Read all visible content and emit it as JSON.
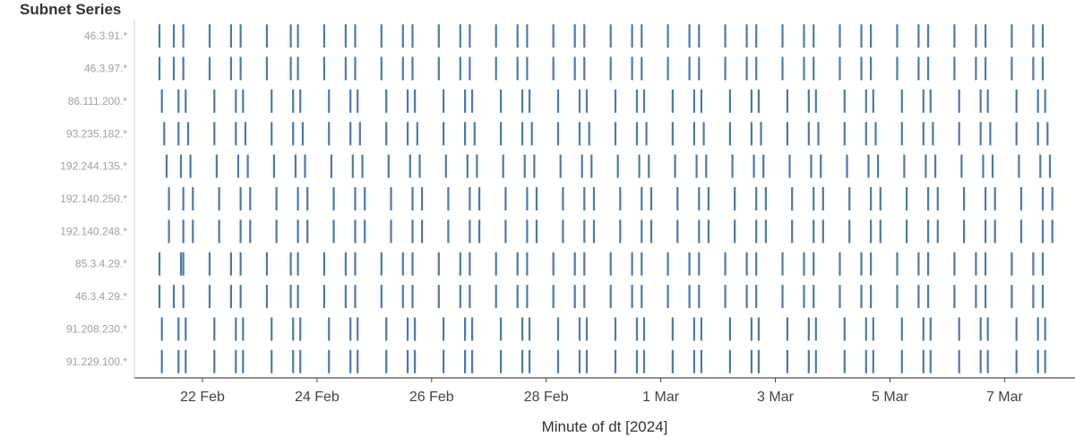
{
  "chart_data": {
    "type": "strip",
    "row_header": "Subnet Series",
    "xlabel": "Minute of dt [2024]",
    "x_ticks": [
      "22 Feb",
      "24 Feb",
      "26 Feb",
      "28 Feb",
      "1 Mar",
      "3 Mar",
      "5 Mar",
      "7 Mar"
    ],
    "xlim": [
      "2024-02-21T00:00",
      "2024-03-07T22:00"
    ],
    "legend": "none",
    "grid": false,
    "mark_color": "#4e79a7",
    "rows": [
      {
        "name": "46.3.91.*",
        "events": [
          "2024-02-21T06:00",
          "2024-02-21T12:00",
          "2024-02-21T16:00",
          "2024-02-22T03:00",
          "2024-02-22T12:00",
          "2024-02-22T16:00",
          "2024-02-23T03:00",
          "2024-02-23T13:00",
          "2024-02-23T16:00",
          "2024-02-24T03:00",
          "2024-02-24T12:00",
          "2024-02-24T16:00",
          "2024-02-25T03:00",
          "2024-02-25T12:00",
          "2024-02-25T16:00",
          "2024-02-26T03:00",
          "2024-02-26T12:00",
          "2024-02-26T16:00",
          "2024-02-27T03:00",
          "2024-02-27T12:00",
          "2024-02-27T16:00",
          "2024-02-28T03:00",
          "2024-02-28T12:00",
          "2024-02-28T16:00",
          "2024-02-29T03:00",
          "2024-02-29T12:00",
          "2024-02-29T16:00",
          "2024-03-01T03:00",
          "2024-03-01T12:00",
          "2024-03-01T16:00",
          "2024-03-02T03:00",
          "2024-03-02T12:00",
          "2024-03-02T16:00",
          "2024-03-03T03:00",
          "2024-03-03T12:00",
          "2024-03-03T16:00",
          "2024-03-04T03:00",
          "2024-03-04T12:00",
          "2024-03-04T16:00",
          "2024-03-05T03:00",
          "2024-03-05T12:00",
          "2024-03-05T16:00",
          "2024-03-06T03:00",
          "2024-03-06T12:00",
          "2024-03-06T16:00",
          "2024-03-07T03:00",
          "2024-03-07T12:00",
          "2024-03-07T16:00"
        ]
      },
      {
        "name": "46.3.97.*",
        "events": [
          "2024-02-21T06:00",
          "2024-02-21T12:00",
          "2024-02-21T16:00",
          "2024-02-22T03:00",
          "2024-02-22T12:00",
          "2024-02-22T16:00",
          "2024-02-23T03:00",
          "2024-02-23T13:00",
          "2024-02-23T16:00",
          "2024-02-24T03:00",
          "2024-02-24T12:00",
          "2024-02-24T16:00",
          "2024-02-25T03:00",
          "2024-02-25T12:00",
          "2024-02-25T16:00",
          "2024-02-26T03:00",
          "2024-02-26T12:00",
          "2024-02-26T16:00",
          "2024-02-27T03:00",
          "2024-02-27T12:00",
          "2024-02-27T16:00",
          "2024-02-28T03:00",
          "2024-02-28T12:00",
          "2024-02-28T16:00",
          "2024-02-29T03:00",
          "2024-02-29T12:00",
          "2024-02-29T16:00",
          "2024-03-01T03:00",
          "2024-03-01T12:00",
          "2024-03-01T16:00",
          "2024-03-02T03:00",
          "2024-03-02T12:00",
          "2024-03-02T16:00",
          "2024-03-03T03:00",
          "2024-03-03T12:00",
          "2024-03-03T16:00",
          "2024-03-04T03:00",
          "2024-03-04T12:00",
          "2024-03-04T16:00",
          "2024-03-05T03:00",
          "2024-03-05T12:00",
          "2024-03-05T16:00",
          "2024-03-06T03:00",
          "2024-03-06T12:00",
          "2024-03-06T16:00",
          "2024-03-07T03:00",
          "2024-03-07T12:00",
          "2024-03-07T16:00"
        ]
      },
      {
        "name": "86.111.200.*",
        "events": [
          "2024-02-21T07:00",
          "2024-02-21T14:00",
          "2024-02-21T17:00",
          "2024-02-22T05:00",
          "2024-02-22T14:00",
          "2024-02-22T17:00",
          "2024-02-23T05:00",
          "2024-02-23T14:00",
          "2024-02-23T17:00",
          "2024-02-24T05:00",
          "2024-02-24T14:00",
          "2024-02-24T17:00",
          "2024-02-25T05:00",
          "2024-02-25T14:00",
          "2024-02-25T17:00",
          "2024-02-26T05:00",
          "2024-02-26T14:00",
          "2024-02-26T17:00",
          "2024-02-27T05:00",
          "2024-02-27T14:00",
          "2024-02-27T17:00",
          "2024-02-28T05:00",
          "2024-02-28T14:00",
          "2024-02-28T17:00",
          "2024-02-29T05:00",
          "2024-02-29T14:00",
          "2024-02-29T17:00",
          "2024-03-01T05:00",
          "2024-03-01T14:00",
          "2024-03-01T17:00",
          "2024-03-02T05:00",
          "2024-03-02T14:00",
          "2024-03-02T17:00",
          "2024-03-03T05:00",
          "2024-03-03T14:00",
          "2024-03-03T17:00",
          "2024-03-04T05:00",
          "2024-03-04T14:00",
          "2024-03-04T17:00",
          "2024-03-05T05:00",
          "2024-03-05T14:00",
          "2024-03-05T17:00",
          "2024-03-06T05:00",
          "2024-03-06T14:00",
          "2024-03-06T17:00",
          "2024-03-07T05:00",
          "2024-03-07T14:00",
          "2024-03-07T17:00"
        ]
      },
      {
        "name": "93.235.182.*",
        "events": [
          "2024-02-21T08:00",
          "2024-02-21T14:00",
          "2024-02-21T18:00",
          "2024-02-22T05:00",
          "2024-02-22T14:00",
          "2024-02-22T18:00",
          "2024-02-23T05:00",
          "2024-02-23T14:00",
          "2024-02-23T18:00",
          "2024-02-24T05:00",
          "2024-02-24T14:00",
          "2024-02-24T18:00",
          "2024-02-25T05:00",
          "2024-02-25T14:00",
          "2024-02-25T18:00",
          "2024-02-26T05:00",
          "2024-02-26T14:00",
          "2024-02-26T18:00",
          "2024-02-27T05:00",
          "2024-02-27T14:00",
          "2024-02-27T18:00",
          "2024-02-28T05:00",
          "2024-02-28T14:00",
          "2024-02-28T18:00",
          "2024-02-29T05:00",
          "2024-02-29T14:00",
          "2024-02-29T18:00",
          "2024-03-01T05:00",
          "2024-03-01T14:00",
          "2024-03-01T18:00",
          "2024-03-02T05:00",
          "2024-03-02T14:00",
          "2024-03-02T18:00",
          "2024-03-03T05:00",
          "2024-03-03T14:00",
          "2024-03-03T18:00",
          "2024-03-04T05:00",
          "2024-03-04T14:00",
          "2024-03-04T18:00",
          "2024-03-05T05:00",
          "2024-03-05T14:00",
          "2024-03-05T18:00",
          "2024-03-06T05:00",
          "2024-03-06T14:00",
          "2024-03-06T18:00",
          "2024-03-07T05:00",
          "2024-03-07T14:00",
          "2024-03-07T18:00"
        ]
      },
      {
        "name": "192.244.135.*",
        "events": [
          "2024-02-21T09:00",
          "2024-02-21T15:00",
          "2024-02-21T19:00",
          "2024-02-22T06:00",
          "2024-02-22T15:00",
          "2024-02-22T19:00",
          "2024-02-23T06:00",
          "2024-02-23T15:00",
          "2024-02-23T19:00",
          "2024-02-24T06:00",
          "2024-02-24T15:00",
          "2024-02-24T19:00",
          "2024-02-25T06:00",
          "2024-02-25T15:00",
          "2024-02-25T19:00",
          "2024-02-26T06:00",
          "2024-02-26T15:00",
          "2024-02-26T19:00",
          "2024-02-27T06:00",
          "2024-02-27T15:00",
          "2024-02-27T19:00",
          "2024-02-28T06:00",
          "2024-02-28T15:00",
          "2024-02-28T19:00",
          "2024-02-29T06:00",
          "2024-02-29T15:00",
          "2024-02-29T19:00",
          "2024-03-01T06:00",
          "2024-03-01T15:00",
          "2024-03-01T19:00",
          "2024-03-02T06:00",
          "2024-03-02T15:00",
          "2024-03-02T19:00",
          "2024-03-03T06:00",
          "2024-03-03T15:00",
          "2024-03-03T19:00",
          "2024-03-04T06:00",
          "2024-03-04T15:00",
          "2024-03-04T19:00",
          "2024-03-05T06:00",
          "2024-03-05T15:00",
          "2024-03-05T19:00",
          "2024-03-06T06:00",
          "2024-03-06T15:00",
          "2024-03-06T19:00",
          "2024-03-07T06:00",
          "2024-03-07T15:00",
          "2024-03-07T19:00"
        ]
      },
      {
        "name": "192.140.250.*",
        "events": [
          "2024-02-21T10:00",
          "2024-02-21T16:00",
          "2024-02-21T20:00",
          "2024-02-22T07:00",
          "2024-02-22T16:00",
          "2024-02-22T20:00",
          "2024-02-23T07:00",
          "2024-02-23T16:00",
          "2024-02-23T20:00",
          "2024-02-24T07:00",
          "2024-02-24T16:00",
          "2024-02-24T20:00",
          "2024-02-25T07:00",
          "2024-02-25T16:00",
          "2024-02-25T20:00",
          "2024-02-26T07:00",
          "2024-02-26T16:00",
          "2024-02-26T20:00",
          "2024-02-27T07:00",
          "2024-02-27T16:00",
          "2024-02-27T20:00",
          "2024-02-28T07:00",
          "2024-02-28T16:00",
          "2024-02-28T20:00",
          "2024-02-29T07:00",
          "2024-02-29T16:00",
          "2024-02-29T20:00",
          "2024-03-01T07:00",
          "2024-03-01T16:00",
          "2024-03-01T20:00",
          "2024-03-02T07:00",
          "2024-03-02T16:00",
          "2024-03-02T20:00",
          "2024-03-03T07:00",
          "2024-03-03T16:00",
          "2024-03-03T20:00",
          "2024-03-04T07:00",
          "2024-03-04T16:00",
          "2024-03-04T20:00",
          "2024-03-05T07:00",
          "2024-03-05T16:00",
          "2024-03-05T20:00",
          "2024-03-06T07:00",
          "2024-03-06T16:00",
          "2024-03-06T20:00",
          "2024-03-07T07:00",
          "2024-03-07T16:00",
          "2024-03-07T20:00"
        ]
      },
      {
        "name": "192.140.248.*",
        "events": [
          "2024-02-21T10:00",
          "2024-02-21T16:00",
          "2024-02-21T20:00",
          "2024-02-22T07:00",
          "2024-02-22T16:00",
          "2024-02-22T20:00",
          "2024-02-23T07:00",
          "2024-02-23T16:00",
          "2024-02-23T20:00",
          "2024-02-24T07:00",
          "2024-02-24T16:00",
          "2024-02-24T20:00",
          "2024-02-25T07:00",
          "2024-02-25T16:00",
          "2024-02-25T20:00",
          "2024-02-26T07:00",
          "2024-02-26T16:00",
          "2024-02-26T20:00",
          "2024-02-27T07:00",
          "2024-02-27T16:00",
          "2024-02-27T20:00",
          "2024-02-28T07:00",
          "2024-02-28T16:00",
          "2024-02-28T20:00",
          "2024-02-29T07:00",
          "2024-02-29T16:00",
          "2024-02-29T20:00",
          "2024-03-01T07:00",
          "2024-03-01T16:00",
          "2024-03-01T20:00",
          "2024-03-02T07:00",
          "2024-03-02T16:00",
          "2024-03-02T20:00",
          "2024-03-03T07:00",
          "2024-03-03T16:00",
          "2024-03-03T20:00",
          "2024-03-04T07:00",
          "2024-03-04T16:00",
          "2024-03-04T20:00",
          "2024-03-05T07:00",
          "2024-03-05T16:00",
          "2024-03-05T20:00",
          "2024-03-06T07:00",
          "2024-03-06T16:00",
          "2024-03-06T20:00",
          "2024-03-07T07:00",
          "2024-03-07T16:00",
          "2024-03-07T20:00"
        ]
      },
      {
        "name": "85.3.4.29.*",
        "events": [
          "2024-02-21T06:00",
          "2024-02-21T15:00",
          "2024-02-21T16:00",
          "2024-02-22T03:00",
          "2024-02-22T12:00",
          "2024-02-22T16:00",
          "2024-02-23T03:00",
          "2024-02-23T13:00",
          "2024-02-23T16:00",
          "2024-02-24T03:00",
          "2024-02-24T12:00",
          "2024-02-24T16:00",
          "2024-02-25T03:00",
          "2024-02-25T12:00",
          "2024-02-25T16:00",
          "2024-02-26T03:00",
          "2024-02-26T12:00",
          "2024-02-26T16:00",
          "2024-02-27T03:00",
          "2024-02-27T12:00",
          "2024-02-27T16:00",
          "2024-02-28T03:00",
          "2024-02-28T12:00",
          "2024-02-28T16:00",
          "2024-02-29T03:00",
          "2024-02-29T12:00",
          "2024-02-29T16:00",
          "2024-03-01T03:00",
          "2024-03-01T12:00",
          "2024-03-01T16:00",
          "2024-03-02T03:00",
          "2024-03-02T12:00",
          "2024-03-02T16:00",
          "2024-03-03T03:00",
          "2024-03-03T12:00",
          "2024-03-03T16:00",
          "2024-03-04T03:00",
          "2024-03-04T12:00",
          "2024-03-04T16:00",
          "2024-03-05T03:00",
          "2024-03-05T12:00",
          "2024-03-05T16:00",
          "2024-03-06T03:00",
          "2024-03-06T12:00",
          "2024-03-06T16:00",
          "2024-03-07T03:00",
          "2024-03-07T12:00",
          "2024-03-07T16:00"
        ]
      },
      {
        "name": "46.3.4.29.*",
        "events": [
          "2024-02-21T06:00",
          "2024-02-21T12:00",
          "2024-02-21T16:00",
          "2024-02-22T03:00",
          "2024-02-22T12:00",
          "2024-02-22T16:00",
          "2024-02-23T03:00",
          "2024-02-23T13:00",
          "2024-02-23T16:00",
          "2024-02-24T03:00",
          "2024-02-24T12:00",
          "2024-02-24T16:00",
          "2024-02-25T03:00",
          "2024-02-25T12:00",
          "2024-02-25T16:00",
          "2024-02-26T03:00",
          "2024-02-26T12:00",
          "2024-02-26T16:00",
          "2024-02-27T03:00",
          "2024-02-27T12:00",
          "2024-02-27T16:00",
          "2024-02-28T03:00",
          "2024-02-28T12:00",
          "2024-02-28T16:00",
          "2024-02-29T03:00",
          "2024-02-29T12:00",
          "2024-02-29T16:00",
          "2024-03-01T03:00",
          "2024-03-01T12:00",
          "2024-03-01T16:00",
          "2024-03-02T03:00",
          "2024-03-02T12:00",
          "2024-03-02T16:00",
          "2024-03-03T03:00",
          "2024-03-03T12:00",
          "2024-03-03T16:00",
          "2024-03-04T03:00",
          "2024-03-04T12:00",
          "2024-03-04T16:00",
          "2024-03-05T03:00",
          "2024-03-05T12:00",
          "2024-03-05T16:00",
          "2024-03-06T03:00",
          "2024-03-06T12:00",
          "2024-03-06T16:00",
          "2024-03-07T03:00",
          "2024-03-07T12:00",
          "2024-03-07T16:00"
        ]
      },
      {
        "name": "91.208.230.*",
        "events": [
          "2024-02-21T07:00",
          "2024-02-21T14:00",
          "2024-02-21T17:00",
          "2024-02-22T05:00",
          "2024-02-22T14:00",
          "2024-02-22T17:00",
          "2024-02-23T05:00",
          "2024-02-23T14:00",
          "2024-02-23T17:00",
          "2024-02-24T05:00",
          "2024-02-24T14:00",
          "2024-02-24T17:00",
          "2024-02-25T05:00",
          "2024-02-25T14:00",
          "2024-02-25T17:00",
          "2024-02-26T05:00",
          "2024-02-26T14:00",
          "2024-02-26T17:00",
          "2024-02-27T05:00",
          "2024-02-27T14:00",
          "2024-02-27T17:00",
          "2024-02-28T05:00",
          "2024-02-28T14:00",
          "2024-02-28T17:00",
          "2024-02-29T05:00",
          "2024-02-29T14:00",
          "2024-02-29T17:00",
          "2024-03-01T05:00",
          "2024-03-01T14:00",
          "2024-03-01T17:00",
          "2024-03-02T05:00",
          "2024-03-02T14:00",
          "2024-03-02T17:00",
          "2024-03-03T05:00",
          "2024-03-03T14:00",
          "2024-03-03T17:00",
          "2024-03-04T05:00",
          "2024-03-04T14:00",
          "2024-03-04T17:00",
          "2024-03-05T05:00",
          "2024-03-05T14:00",
          "2024-03-05T17:00",
          "2024-03-06T05:00",
          "2024-03-06T14:00",
          "2024-03-06T17:00",
          "2024-03-07T05:00",
          "2024-03-07T14:00",
          "2024-03-07T17:00"
        ]
      },
      {
        "name": "91.229.100.*",
        "events": [
          "2024-02-21T07:00",
          "2024-02-21T14:00",
          "2024-02-21T17:00",
          "2024-02-22T05:00",
          "2024-02-22T14:00",
          "2024-02-22T17:00",
          "2024-02-23T05:00",
          "2024-02-23T14:00",
          "2024-02-23T17:00",
          "2024-02-24T05:00",
          "2024-02-24T14:00",
          "2024-02-24T17:00",
          "2024-02-25T05:00",
          "2024-02-25T14:00",
          "2024-02-25T17:00",
          "2024-02-26T05:00",
          "2024-02-26T14:00",
          "2024-02-26T17:00",
          "2024-02-27T05:00",
          "2024-02-27T14:00",
          "2024-02-27T17:00",
          "2024-02-28T05:00",
          "2024-02-28T14:00",
          "2024-02-28T17:00",
          "2024-02-29T05:00",
          "2024-02-29T14:00",
          "2024-02-29T17:00",
          "2024-03-01T05:00",
          "2024-03-01T14:00",
          "2024-03-01T17:00",
          "2024-03-02T05:00",
          "2024-03-02T14:00",
          "2024-03-02T17:00",
          "2024-03-03T05:00",
          "2024-03-03T14:00",
          "2024-03-03T17:00",
          "2024-03-04T05:00",
          "2024-03-04T14:00",
          "2024-03-04T17:00",
          "2024-03-05T05:00",
          "2024-03-05T14:00",
          "2024-03-05T17:00",
          "2024-03-06T05:00",
          "2024-03-06T14:00",
          "2024-03-06T17:00",
          "2024-03-07T05:00",
          "2024-03-07T14:00",
          "2024-03-07T17:00"
        ]
      }
    ]
  }
}
